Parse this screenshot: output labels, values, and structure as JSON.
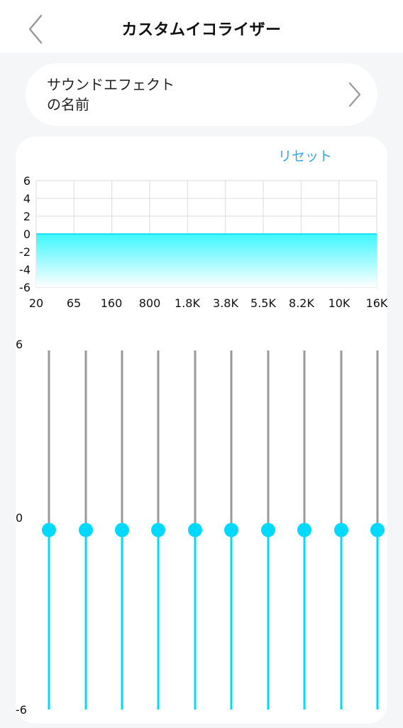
{
  "nav": {
    "title": "カスタムイコライザー",
    "back_icon": "chevron-left-icon"
  },
  "effect": {
    "name": "サウンドエフェクトの名前",
    "chevron_icon": "chevron-right-icon"
  },
  "reset_label": "リセット",
  "colors": {
    "accent": "#00d9ff",
    "fill_top": "#3ef6ff",
    "grid": "#dcdcdc",
    "track_upper": "#9a9a9a",
    "link": "#3aa6e6"
  },
  "chart_data": {
    "type": "area",
    "categories": [
      "20",
      "65",
      "160",
      "800",
      "1.8K",
      "3.8K",
      "5.5K",
      "8.2K",
      "10K",
      "16K"
    ],
    "values": [
      0,
      0,
      0,
      0,
      0,
      0,
      0,
      0,
      0,
      0
    ],
    "yticks": [
      "6",
      "4",
      "2",
      "0",
      "-2",
      "-4",
      "-6"
    ],
    "ylim": [
      -6,
      6
    ],
    "grid": true
  },
  "sliders": {
    "max_label": "6",
    "mid_label": "0",
    "min_label": "-6",
    "range": [
      -6,
      6
    ],
    "values": [
      0,
      0,
      0,
      0,
      0,
      0,
      0,
      0,
      0,
      0
    ]
  }
}
